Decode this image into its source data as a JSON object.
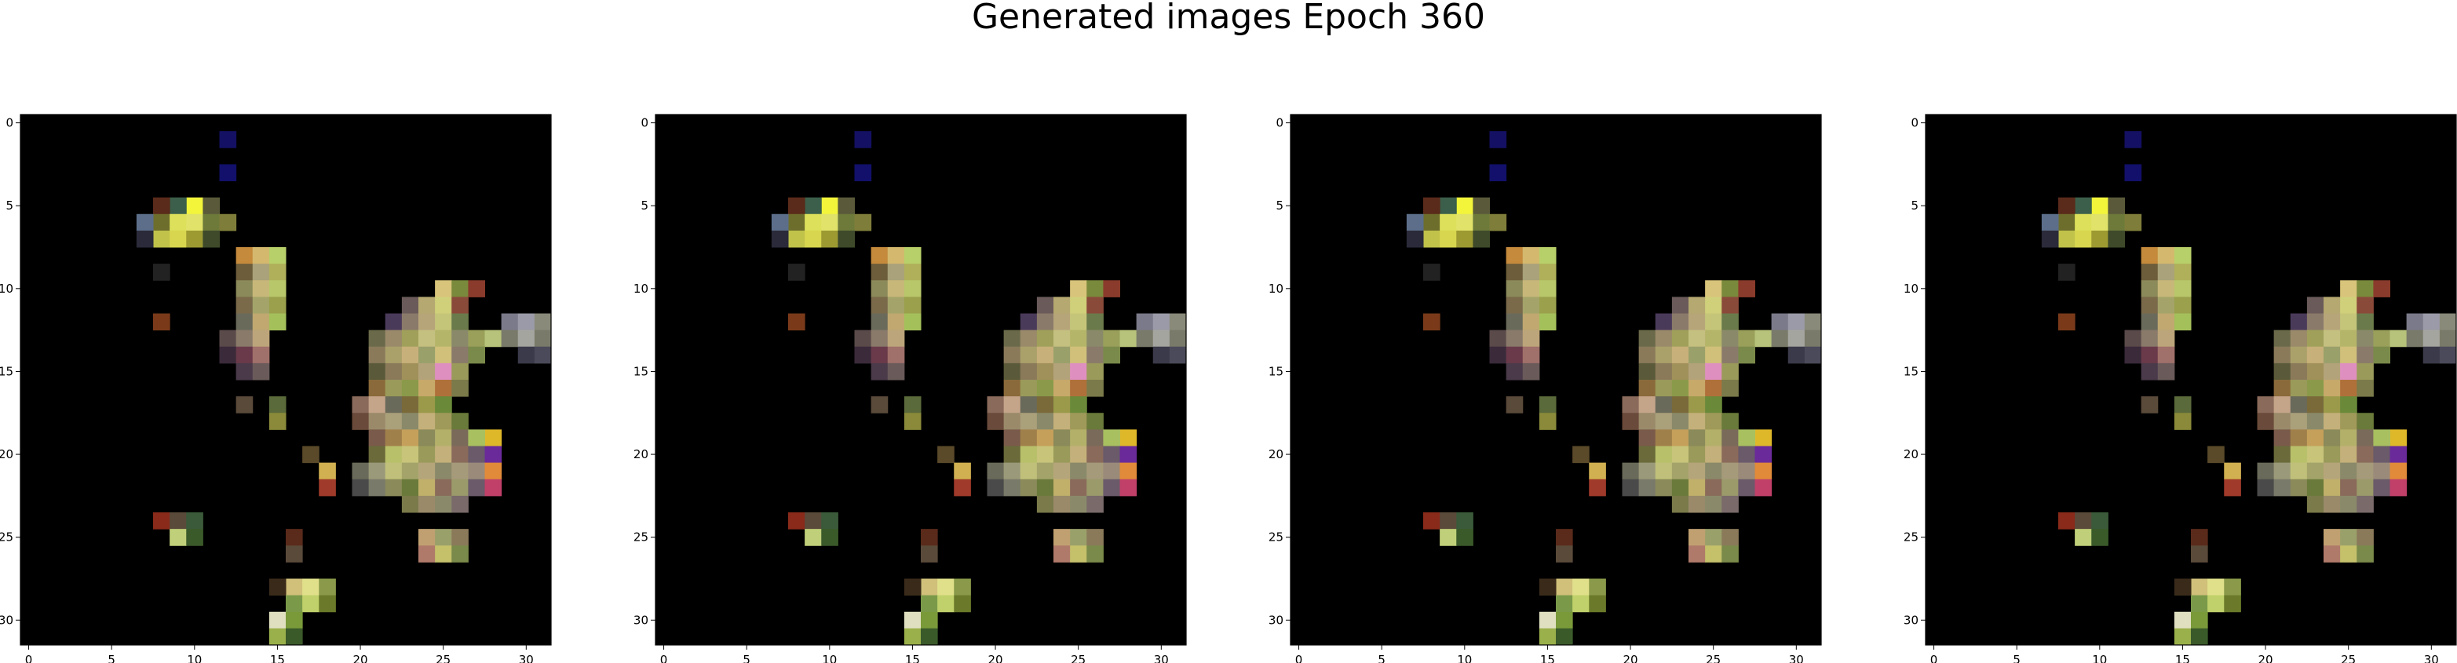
{
  "figure": {
    "title": "Generated images Epoch 360"
  },
  "colors": {
    "background": "#ffffff",
    "canvas": "#000000",
    "axis": "#000000"
  },
  "chart_data": [
    {
      "type": "heatmap",
      "title": "",
      "xlabel": "",
      "ylabel": "",
      "xlim": [
        -0.5,
        31.5
      ],
      "ylim": [
        31.5,
        -0.5
      ],
      "xticks": [
        0,
        5,
        10,
        15,
        20,
        25,
        30
      ],
      "yticks": [
        0,
        5,
        10,
        15,
        20,
        25,
        30
      ],
      "grid": false
    },
    {
      "type": "heatmap",
      "title": "",
      "xlabel": "",
      "ylabel": "",
      "xlim": [
        -0.5,
        31.5
      ],
      "ylim": [
        31.5,
        -0.5
      ],
      "xticks": [
        0,
        5,
        10,
        15,
        20,
        25,
        30
      ],
      "yticks": [
        0,
        5,
        10,
        15,
        20,
        25,
        30
      ],
      "grid": false
    },
    {
      "type": "heatmap",
      "title": "",
      "xlabel": "",
      "ylabel": "",
      "xlim": [
        -0.5,
        31.5
      ],
      "ylim": [
        31.5,
        -0.5
      ],
      "xticks": [
        0,
        5,
        10,
        15,
        20,
        25,
        30
      ],
      "yticks": [
        0,
        5,
        10,
        15,
        20,
        25,
        30
      ],
      "grid": false
    },
    {
      "type": "heatmap",
      "title": "",
      "xlabel": "",
      "ylabel": "",
      "xlim": [
        -0.5,
        31.5
      ],
      "ylim": [
        31.5,
        -0.5
      ],
      "xticks": [
        0,
        5,
        10,
        15,
        20,
        25,
        30
      ],
      "yticks": [
        0,
        5,
        10,
        15,
        20,
        25,
        30
      ],
      "grid": false
    }
  ],
  "image_pixels": {
    "size": [
      32,
      32
    ],
    "description_free": true,
    "cells": [
      [
        12,
        1,
        "#141063"
      ],
      [
        12,
        3,
        "#12106a"
      ],
      [
        10,
        5,
        "#f2f53a"
      ],
      [
        9,
        5,
        "#3b5f4a"
      ],
      [
        11,
        5,
        "#5a5a3a"
      ],
      [
        8,
        5,
        "#5a2a1a"
      ],
      [
        8,
        6,
        "#6d6e2c"
      ],
      [
        9,
        6,
        "#dde05b"
      ],
      [
        10,
        6,
        "#e0e26a"
      ],
      [
        11,
        6,
        "#6d7a3a"
      ],
      [
        12,
        6,
        "#7f7d3a"
      ],
      [
        7,
        6,
        "#5c6e8a"
      ],
      [
        8,
        7,
        "#c0c24a"
      ],
      [
        9,
        7,
        "#d7d64e"
      ],
      [
        10,
        7,
        "#9d9a32"
      ],
      [
        11,
        7,
        "#3e4a2a"
      ],
      [
        7,
        7,
        "#2a2a3a"
      ],
      [
        13,
        8,
        "#c58a3c"
      ],
      [
        14,
        8,
        "#d4b86e"
      ],
      [
        15,
        8,
        "#b8d06a"
      ],
      [
        13,
        9,
        "#6d5d3a"
      ],
      [
        14,
        9,
        "#a9a27a"
      ],
      [
        15,
        9,
        "#b0b05a"
      ],
      [
        8,
        9,
        "#222"
      ],
      [
        13,
        10,
        "#8b8a5a"
      ],
      [
        14,
        10,
        "#c7b779"
      ],
      [
        15,
        10,
        "#b7c76a"
      ],
      [
        25,
        10,
        "#d8c47a"
      ],
      [
        26,
        10,
        "#7a8a3c"
      ],
      [
        27,
        10,
        "#8a3b2b"
      ],
      [
        13,
        11,
        "#7a6a4a"
      ],
      [
        14,
        11,
        "#a4a46a"
      ],
      [
        15,
        11,
        "#9aa04c"
      ],
      [
        23,
        11,
        "#6a5a5a"
      ],
      [
        24,
        11,
        "#b5a870"
      ],
      [
        25,
        11,
        "#d0d07a"
      ],
      [
        26,
        11,
        "#8a4a3a"
      ],
      [
        8,
        12,
        "#7a3a1a"
      ],
      [
        13,
        12,
        "#6a6a5a"
      ],
      [
        14,
        12,
        "#c0a870"
      ],
      [
        15,
        12,
        "#a4c05a"
      ],
      [
        22,
        12,
        "#4a3a5a"
      ],
      [
        23,
        12,
        "#8a7a6a"
      ],
      [
        24,
        12,
        "#b7a57a"
      ],
      [
        25,
        12,
        "#c5c57a"
      ],
      [
        26,
        12,
        "#6a7a4a"
      ],
      [
        29,
        12,
        "#7a7a8a"
      ],
      [
        30,
        12,
        "#9a9aa8"
      ],
      [
        31,
        12,
        "#8a8a7a"
      ],
      [
        12,
        13,
        "#5a4a4a"
      ],
      [
        13,
        13,
        "#8a7a6a"
      ],
      [
        14,
        13,
        "#bca57a"
      ],
      [
        21,
        13,
        "#6a6a4a"
      ],
      [
        22,
        13,
        "#9a8a6a"
      ],
      [
        23,
        13,
        "#a0a05a"
      ],
      [
        24,
        13,
        "#c4c080"
      ],
      [
        25,
        13,
        "#b5b56a"
      ],
      [
        26,
        13,
        "#8a8a6a"
      ],
      [
        27,
        13,
        "#9aa05a"
      ],
      [
        28,
        13,
        "#b7c37a"
      ],
      [
        29,
        13,
        "#7a7a6a"
      ],
      [
        30,
        13,
        "#a5a5a0"
      ],
      [
        31,
        13,
        "#7a7a6a"
      ],
      [
        12,
        14,
        "#3a2a3a"
      ],
      [
        13,
        14,
        "#6a3a4a"
      ],
      [
        14,
        14,
        "#a0706a"
      ],
      [
        21,
        14,
        "#8a7a5a"
      ],
      [
        22,
        14,
        "#aaa06a"
      ],
      [
        23,
        14,
        "#c8b07a"
      ],
      [
        24,
        14,
        "#9aa06a"
      ],
      [
        25,
        14,
        "#d0c07a"
      ],
      [
        26,
        14,
        "#8a7a6a"
      ],
      [
        27,
        14,
        "#7a8a4a"
      ],
      [
        30,
        14,
        "#3a3a4a"
      ],
      [
        31,
        14,
        "#4a4a5a"
      ],
      [
        13,
        15,
        "#4a3a4a"
      ],
      [
        14,
        15,
        "#6a5a5a"
      ],
      [
        21,
        15,
        "#5a5a3a"
      ],
      [
        22,
        15,
        "#8a7a5a"
      ],
      [
        23,
        15,
        "#a0905a"
      ],
      [
        24,
        15,
        "#b3a37a"
      ],
      [
        25,
        15,
        "#df8fbf"
      ],
      [
        26,
        15,
        "#9a9a5a"
      ],
      [
        21,
        16,
        "#8a6a3a"
      ],
      [
        22,
        16,
        "#9a9a5a"
      ],
      [
        23,
        16,
        "#8a9a4a"
      ],
      [
        24,
        16,
        "#c7a96a"
      ],
      [
        25,
        16,
        "#b0703a"
      ],
      [
        26,
        16,
        "#7a7a4a"
      ],
      [
        20,
        17,
        "#8a6a5a"
      ],
      [
        21,
        17,
        "#c5a58a"
      ],
      [
        22,
        17,
        "#6a6a5a"
      ],
      [
        23,
        17,
        "#7a6a3a"
      ],
      [
        24,
        17,
        "#9a9a4a"
      ],
      [
        25,
        17,
        "#6a8a3a"
      ],
      [
        15,
        17,
        "#5a6a3a"
      ],
      [
        13,
        17,
        "#5a4a3a"
      ],
      [
        20,
        18,
        "#6a4a3a"
      ],
      [
        21,
        18,
        "#9a8a6a"
      ],
      [
        22,
        18,
        "#aaa07a"
      ],
      [
        23,
        18,
        "#8a8a6a"
      ],
      [
        24,
        18,
        "#c4b07a"
      ],
      [
        25,
        18,
        "#a09a5a"
      ],
      [
        26,
        18,
        "#6a7a3a"
      ],
      [
        15,
        18,
        "#8a8a3a"
      ],
      [
        21,
        19,
        "#7a5a4a"
      ],
      [
        22,
        19,
        "#a0804a"
      ],
      [
        23,
        19,
        "#c5a05a"
      ],
      [
        24,
        19,
        "#8a8a5a"
      ],
      [
        25,
        19,
        "#b3b06a"
      ],
      [
        26,
        19,
        "#7a6a5a"
      ],
      [
        28,
        19,
        "#dfb82a"
      ],
      [
        27,
        19,
        "#a8c060"
      ],
      [
        21,
        20,
        "#6a6a3a"
      ],
      [
        22,
        20,
        "#b8c06a"
      ],
      [
        23,
        20,
        "#c8c47a"
      ],
      [
        24,
        20,
        "#9a9a5a"
      ],
      [
        25,
        20,
        "#c4b07a"
      ],
      [
        26,
        20,
        "#8a6a5a"
      ],
      [
        27,
        20,
        "#6a5a6a"
      ],
      [
        28,
        20,
        "#6a2a9a"
      ],
      [
        17,
        20,
        "#5a4a2a"
      ],
      [
        20,
        21,
        "#6a6a5a"
      ],
      [
        21,
        21,
        "#9a9a7a"
      ],
      [
        22,
        21,
        "#c0c07a"
      ],
      [
        23,
        21,
        "#a4a46a"
      ],
      [
        24,
        21,
        "#b5a57a"
      ],
      [
        25,
        21,
        "#8a8a6a"
      ],
      [
        26,
        21,
        "#a59a7a"
      ],
      [
        27,
        21,
        "#9a8a7a"
      ],
      [
        28,
        21,
        "#e08a3a"
      ],
      [
        18,
        21,
        "#d0b050"
      ],
      [
        20,
        22,
        "#4a4a4a"
      ],
      [
        21,
        22,
        "#7a7a6a"
      ],
      [
        22,
        22,
        "#8a8a5a"
      ],
      [
        23,
        22,
        "#6a7a3a"
      ],
      [
        24,
        22,
        "#c0b06a"
      ],
      [
        25,
        22,
        "#8a6a5a"
      ],
      [
        26,
        22,
        "#9a9a6a"
      ],
      [
        27,
        22,
        "#6a5a6a"
      ],
      [
        28,
        22,
        "#c0406a"
      ],
      [
        18,
        22,
        "#a03a2a"
      ],
      [
        8,
        24,
        "#8a2a1a"
      ],
      [
        9,
        24,
        "#5a4a3a"
      ],
      [
        10,
        24,
        "#3a5a3a"
      ],
      [
        23,
        23,
        "#7a7a4a"
      ],
      [
        24,
        23,
        "#9a8a6a"
      ],
      [
        25,
        23,
        "#8a8a6a"
      ],
      [
        26,
        23,
        "#7a6a6a"
      ],
      [
        9,
        25,
        "#c0d07a"
      ],
      [
        10,
        25,
        "#3a5a2a"
      ],
      [
        24,
        25,
        "#c0a070"
      ],
      [
        25,
        25,
        "#9aa06a"
      ],
      [
        26,
        25,
        "#8a7a5a"
      ],
      [
        16,
        25,
        "#5a2a1a"
      ],
      [
        24,
        26,
        "#b07a6a"
      ],
      [
        25,
        26,
        "#c5c06a"
      ],
      [
        26,
        26,
        "#7a8a4a"
      ],
      [
        16,
        26,
        "#5a4a3a"
      ],
      [
        16,
        28,
        "#d0c07a"
      ],
      [
        17,
        28,
        "#e0e08a"
      ],
      [
        18,
        28,
        "#8a9a4a"
      ],
      [
        15,
        28,
        "#3a2a1a"
      ],
      [
        16,
        29,
        "#7a9a4a"
      ],
      [
        17,
        29,
        "#c0d06a"
      ],
      [
        18,
        29,
        "#6a7a2a"
      ],
      [
        15,
        30,
        "#e0e0c0"
      ],
      [
        16,
        30,
        "#7a9a3a"
      ],
      [
        15,
        31,
        "#9ab04a"
      ],
      [
        16,
        31,
        "#3a5a2a"
      ]
    ]
  }
}
